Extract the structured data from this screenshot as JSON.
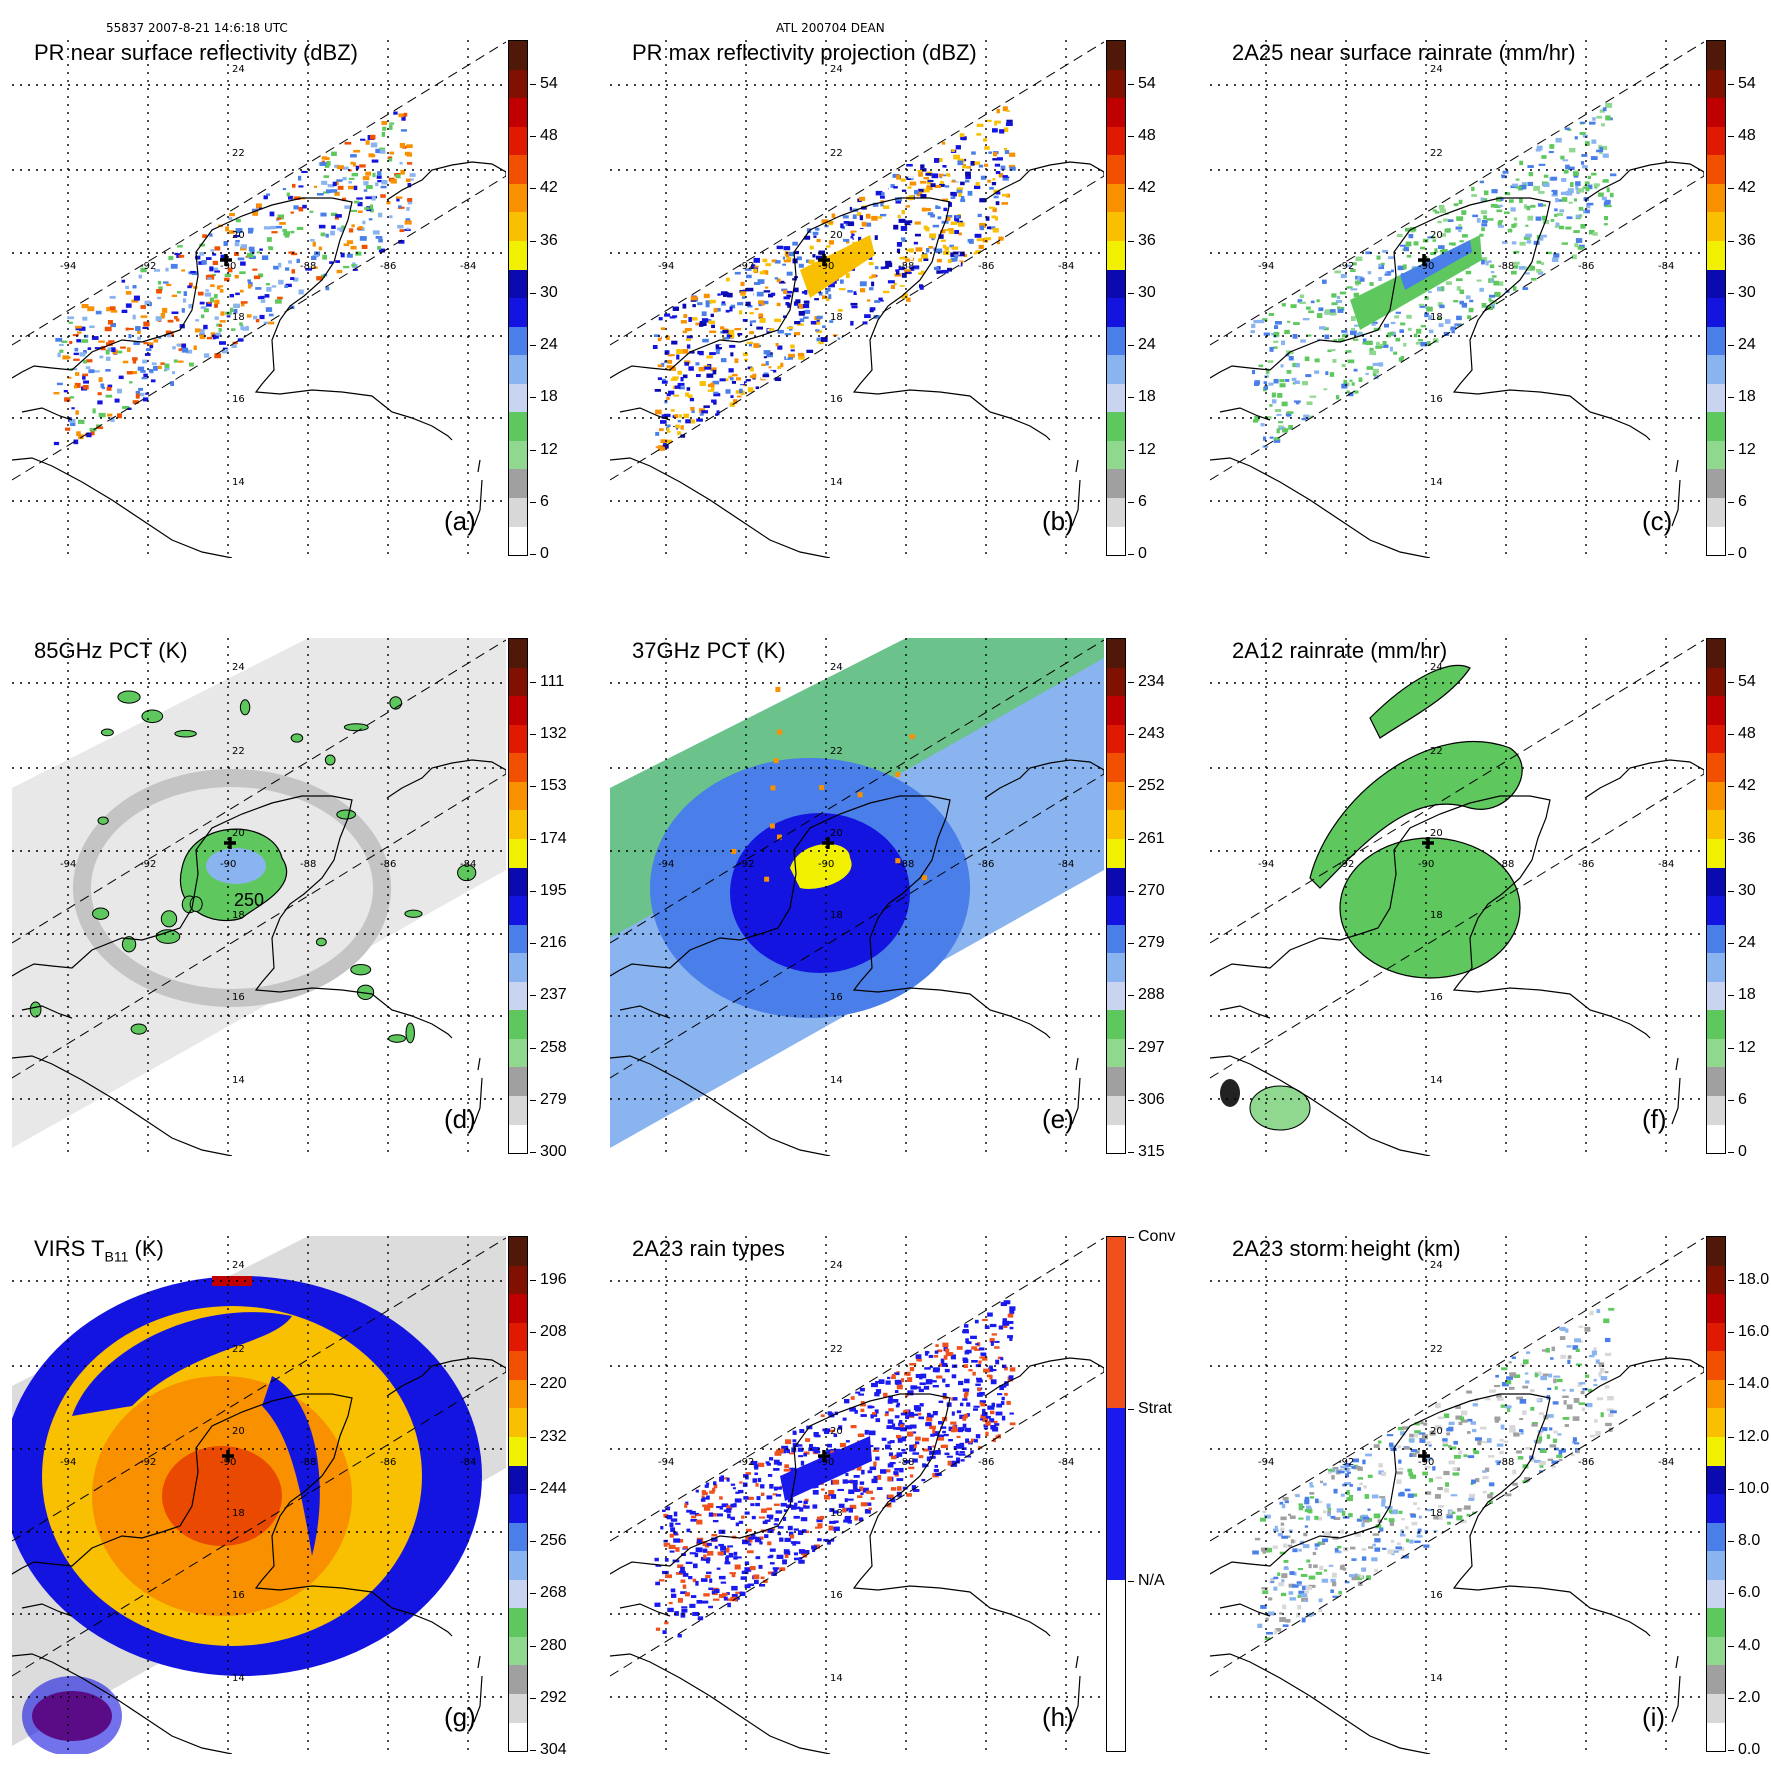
{
  "header": {
    "orbit_time": "55837 2007-8-21 14:6:18 UTC",
    "storm": "ATL 200704 DEAN"
  },
  "grid": {
    "lon_labels": [
      "-94",
      "-92",
      "-90",
      "-88",
      "-86",
      "-84"
    ],
    "lat_labels": [
      "24",
      "22",
      "20",
      "18",
      "16",
      "14"
    ]
  },
  "colors": {
    "coast": "#000000",
    "grid": "#000000",
    "ramp": [
      "#ffffff",
      "#d8d8d8",
      "#a0a0a0",
      "#90d890",
      "#5ec85e",
      "#c8d4f0",
      "#8ab4f0",
      "#4a7ee8",
      "#1414e0",
      "#0a0ab0",
      "#f0f000",
      "#f8c000",
      "#f89000",
      "#f05000",
      "#e01a00",
      "#c00000",
      "#801000",
      "#501808"
    ],
    "rain_types": [
      "#ffffff",
      "#1a1aef",
      "#f0501c"
    ]
  },
  "panels": [
    {
      "id": "a",
      "title": "PR near surface reflectivity (dBZ)",
      "label": "(a)",
      "cbar_ticks": [
        "54",
        "48",
        "42",
        "36",
        "30",
        "24",
        "18",
        "12",
        "6",
        "0"
      ],
      "tick_last_bottom": true,
      "field": "pr_swath",
      "style": "reflect"
    },
    {
      "id": "b",
      "title": "PR max reflectivity projection (dBZ)",
      "label": "(b)",
      "cbar_ticks": [
        "54",
        "48",
        "42",
        "36",
        "30",
        "24",
        "18",
        "12",
        "6",
        "0"
      ],
      "tick_last_bottom": true,
      "field": "pr_swath",
      "style": "reflect_dense"
    },
    {
      "id": "c",
      "title": "2A25 near surface rainrate (mm/hr)",
      "label": "(c)",
      "cbar_ticks": [
        "54",
        "48",
        "42",
        "36",
        "30",
        "24",
        "18",
        "12",
        "6",
        "0"
      ],
      "tick_last_bottom": true,
      "field": "pr_swath",
      "style": "rain"
    },
    {
      "id": "d",
      "title": "85GHz PCT (K)",
      "label": "(d)",
      "cbar_ticks": [
        "111",
        "132",
        "153",
        "174",
        "195",
        "216",
        "237",
        "258",
        "279",
        "300"
      ],
      "tick_last_bottom": true,
      "field": "tmi_swath",
      "style": "pct85",
      "contour_label": "250"
    },
    {
      "id": "e",
      "title": "37GHz PCT (K)",
      "label": "(e)",
      "cbar_ticks": [
        "234",
        "243",
        "252",
        "261",
        "270",
        "279",
        "288",
        "297",
        "306",
        "315"
      ],
      "tick_last_bottom": true,
      "field": "tmi_swath",
      "style": "pct37"
    },
    {
      "id": "f",
      "title": "2A12 rainrate (mm/hr)",
      "label": "(f)",
      "cbar_ticks": [
        "54",
        "48",
        "42",
        "36",
        "30",
        "24",
        "18",
        "12",
        "6",
        "0"
      ],
      "tick_last_bottom": true,
      "field": "tmi_swath",
      "style": "rain2a12"
    },
    {
      "id": "g",
      "title": "VIRS T",
      "title_sub": "B11",
      "title_tail": " (K)",
      "label": "(g)",
      "cbar_ticks": [
        "196",
        "208",
        "220",
        "232",
        "244",
        "256",
        "268",
        "280",
        "292",
        "304"
      ],
      "tick_last_bottom": true,
      "field": "virs_swath",
      "style": "virs"
    },
    {
      "id": "h",
      "title": "2A23 rain types",
      "label": "(h)",
      "cbar_ticks": [
        "Conv",
        "Strat",
        "N/A"
      ],
      "field": "pr_swath",
      "style": "raintype"
    },
    {
      "id": "i",
      "title": "2A23 storm height (km)",
      "label": "(i)",
      "cbar_ticks": [
        "18.0",
        "16.0",
        "14.0",
        "12.0",
        "10.0",
        "8.0",
        "6.0",
        "4.0",
        "2.0",
        "0.0"
      ],
      "tick_last_bottom": true,
      "field": "pr_swath",
      "style": "height"
    }
  ]
}
